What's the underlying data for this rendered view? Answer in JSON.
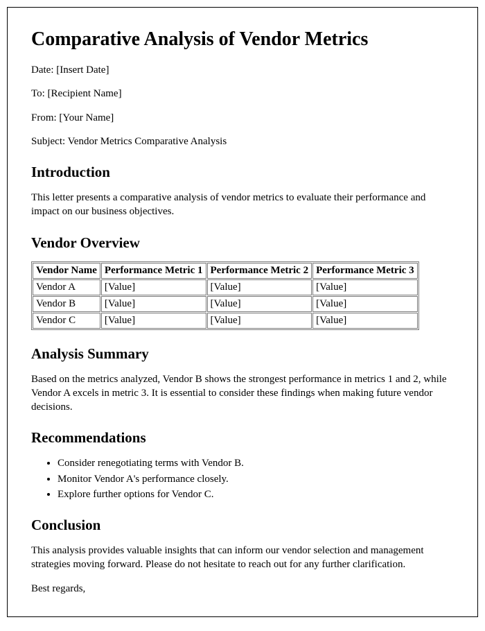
{
  "title": "Comparative Analysis of Vendor Metrics",
  "meta": {
    "date": "Date: [Insert Date]",
    "to": "To: [Recipient Name]",
    "from": "From: [Your Name]",
    "subject": "Subject: Vendor Metrics Comparative Analysis"
  },
  "sections": {
    "intro_heading": "Introduction",
    "intro_body": "This letter presents a comparative analysis of vendor metrics to evaluate their performance and impact on our business objectives.",
    "overview_heading": "Vendor Overview",
    "analysis_heading": "Analysis Summary",
    "analysis_body": "Based on the metrics analyzed, Vendor B shows the strongest performance in metrics 1 and 2, while Vendor A excels in metric 3. It is essential to consider these findings when making future vendor decisions.",
    "recs_heading": "Recommendations",
    "conclusion_heading": "Conclusion",
    "conclusion_body": "This analysis provides valuable insights that can inform our vendor selection and management strategies moving forward. Please do not hesitate to reach out for any further clarification.",
    "signoff": "Best regards,"
  },
  "table": {
    "columns": [
      "Vendor Name",
      "Performance Metric 1",
      "Performance Metric 2",
      "Performance Metric 3"
    ],
    "rows": [
      [
        "Vendor A",
        "[Value]",
        "[Value]",
        "[Value]"
      ],
      [
        "Vendor B",
        "[Value]",
        "[Value]",
        "[Value]"
      ],
      [
        "Vendor C",
        "[Value]",
        "[Value]",
        "[Value]"
      ]
    ]
  },
  "recommendations": [
    "Consider renegotiating terms with Vendor B.",
    "Monitor Vendor A's performance closely.",
    "Explore further options for Vendor C."
  ],
  "styling": {
    "page_border_color": "#000000",
    "table_border_color": "#7a7a7a",
    "background_color": "#ffffff",
    "text_color": "#000000",
    "h1_fontsize": 28,
    "h2_fontsize": 21,
    "body_fontsize": 15,
    "font_family": "Times New Roman"
  }
}
